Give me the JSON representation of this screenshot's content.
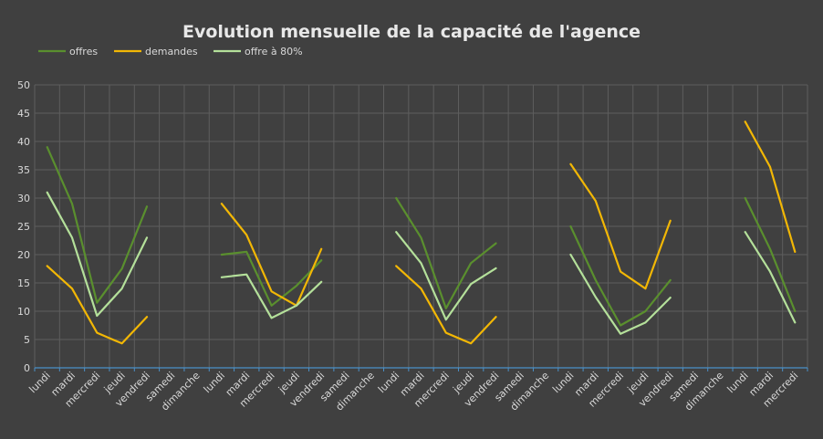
{
  "chart_data": {
    "type": "line",
    "title": "Evolution mensuelle de la capacité de l'agence",
    "xlabel": "",
    "ylabel": "",
    "ylim": [
      0,
      50
    ],
    "yticks": [
      0,
      5,
      10,
      15,
      20,
      25,
      30,
      35,
      40,
      45,
      50
    ],
    "grid": true,
    "legend_position": "top-left",
    "categories": [
      "lundi",
      "mardi",
      "mercredi",
      "jeudi",
      "vendredi",
      "samedi",
      "dimanche",
      "lundi",
      "mardi",
      "mercredi",
      "jeudi",
      "vendredi",
      "samedi",
      "dimanche",
      "lundi",
      "mardi",
      "mercredi",
      "jeudi",
      "vendredi",
      "samedi",
      "dimanche",
      "lundi",
      "mardi",
      "mercredi",
      "jeudi",
      "vendredi",
      "samedi",
      "dimanche",
      "lundi",
      "mardi",
      "mercredi"
    ],
    "series": [
      {
        "name": "offres",
        "color": "#5a8f2e",
        "values": [
          39,
          29,
          11.5,
          17.5,
          28.5,
          null,
          null,
          20,
          20.5,
          11,
          14.5,
          19,
          null,
          null,
          30,
          23,
          10.5,
          18.5,
          22,
          null,
          null,
          25,
          15.5,
          7.5,
          10,
          15.5,
          null,
          null,
          30,
          21,
          10
        ]
      },
      {
        "name": "demandes",
        "color": "#f2b705",
        "values": [
          18,
          14,
          6.2,
          4.3,
          9,
          null,
          null,
          29,
          23.5,
          13.5,
          11,
          21,
          null,
          null,
          18,
          14,
          6.2,
          4.3,
          9,
          null,
          null,
          36,
          29.5,
          17,
          14,
          26,
          null,
          null,
          43.5,
          35.5,
          20.5
        ]
      },
      {
        "name": "offre à 80%",
        "color": "#b4e09a",
        "values": [
          31,
          23,
          9.2,
          14,
          23,
          null,
          null,
          16,
          16.5,
          8.8,
          11,
          15.2,
          null,
          null,
          24,
          18.5,
          8.5,
          14.8,
          17.6,
          null,
          null,
          20,
          12.5,
          6,
          8,
          12.4,
          null,
          null,
          24,
          17,
          8
        ]
      }
    ]
  }
}
